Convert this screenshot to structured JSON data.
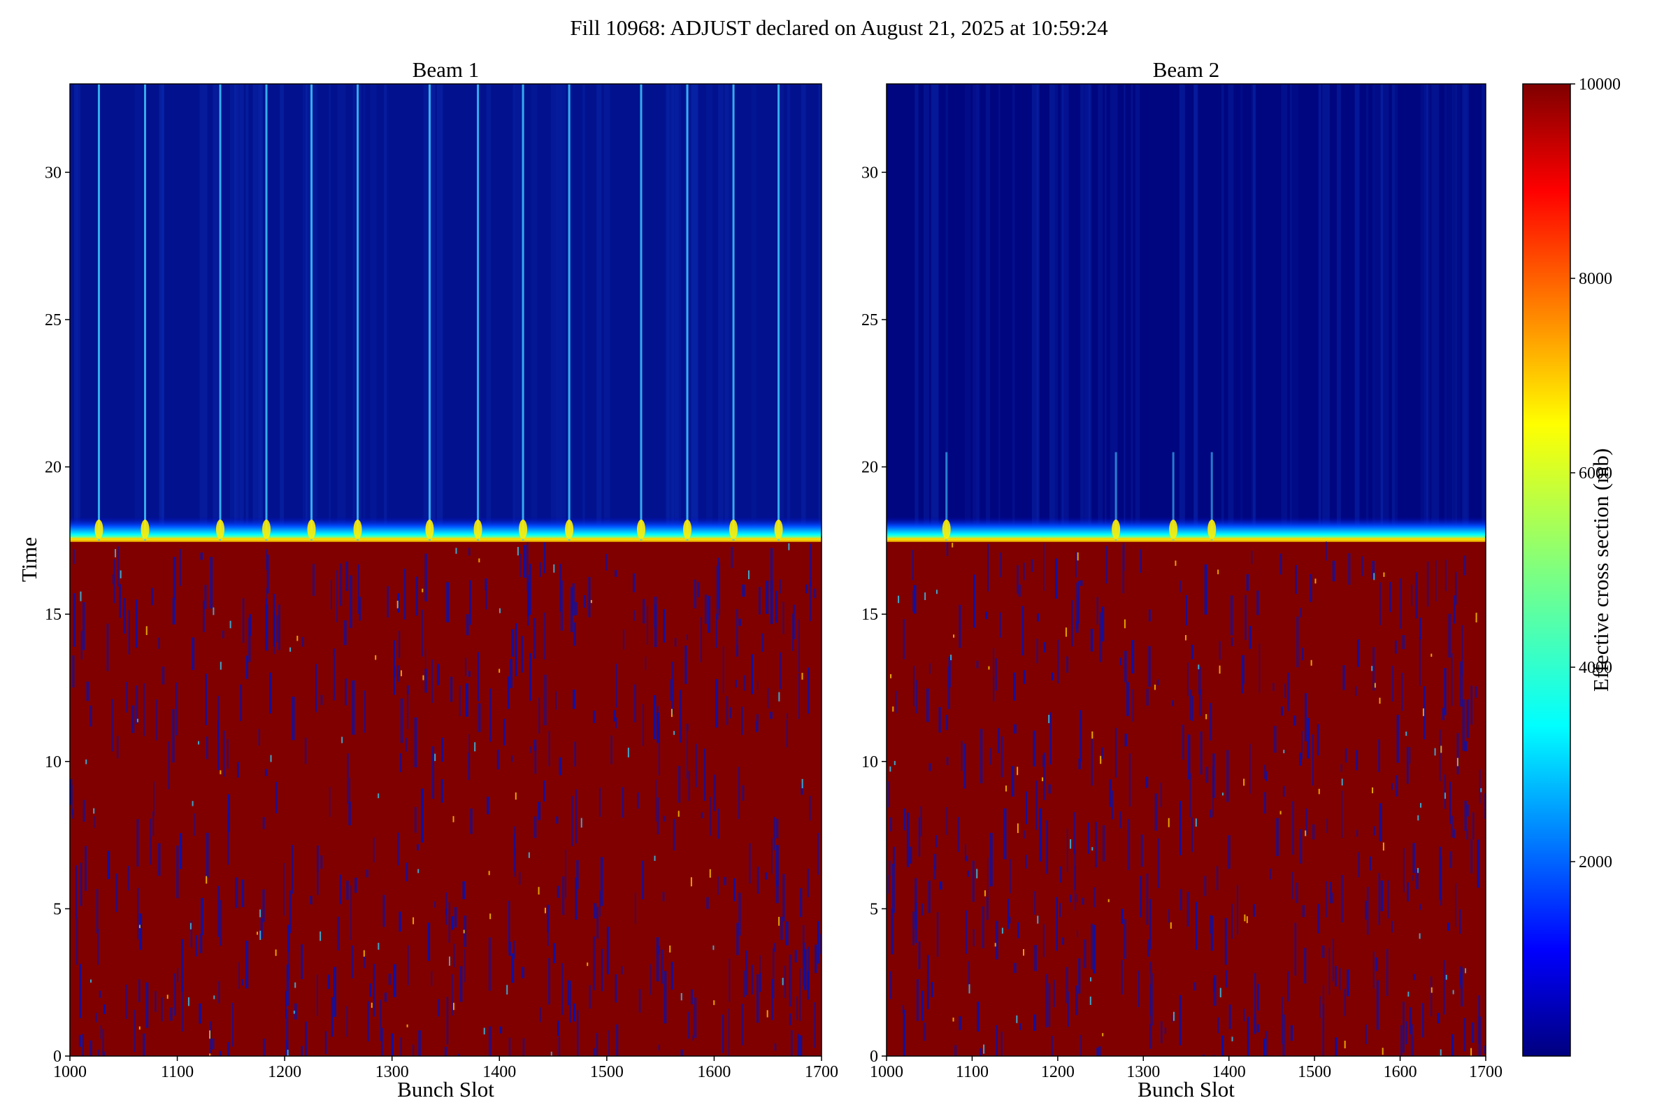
{
  "figure_title": "Fill 10968: ADJUST declared on August 21, 2025 at 10:59:24",
  "colors": {
    "low": "#00007f",
    "high": "#800000",
    "colormap": "jet"
  },
  "chart_data": [
    {
      "type": "heatmap",
      "title": "Beam 1",
      "xlabel": "Bunch Slot",
      "ylabel": "Time",
      "xlim": [
        1000,
        1700
      ],
      "ylim": [
        0,
        33
      ],
      "x_ticks": [
        1000,
        1100,
        1200,
        1300,
        1400,
        1500,
        1600,
        1700
      ],
      "y_ticks": [
        0,
        5,
        10,
        15,
        20,
        25,
        30
      ],
      "transition_time": 17.5,
      "value_below_transition": 10000,
      "value_above_transition": 300,
      "bright_streaks_above_transition": [
        1027,
        1070,
        1140,
        1183,
        1225,
        1268,
        1335,
        1380,
        1422,
        1465,
        1532,
        1575,
        1618,
        1660
      ]
    },
    {
      "type": "heatmap",
      "title": "Beam 2",
      "xlabel": "Bunch Slot",
      "ylabel": "",
      "xlim": [
        1000,
        1700
      ],
      "ylim": [
        0,
        33
      ],
      "x_ticks": [
        1000,
        1100,
        1200,
        1300,
        1400,
        1500,
        1600,
        1700
      ],
      "y_ticks": [
        0,
        5,
        10,
        15,
        20,
        25,
        30
      ],
      "transition_time": 17.5,
      "value_below_transition": 10000,
      "value_above_transition": 100,
      "bright_streaks_above_transition": [
        1070,
        1268,
        1335,
        1380
      ]
    }
  ],
  "colorbar": {
    "label": "Effective cross section (mb)",
    "min": 0,
    "max": 10000,
    "ticks": [
      2000,
      4000,
      6000,
      8000,
      10000
    ]
  }
}
